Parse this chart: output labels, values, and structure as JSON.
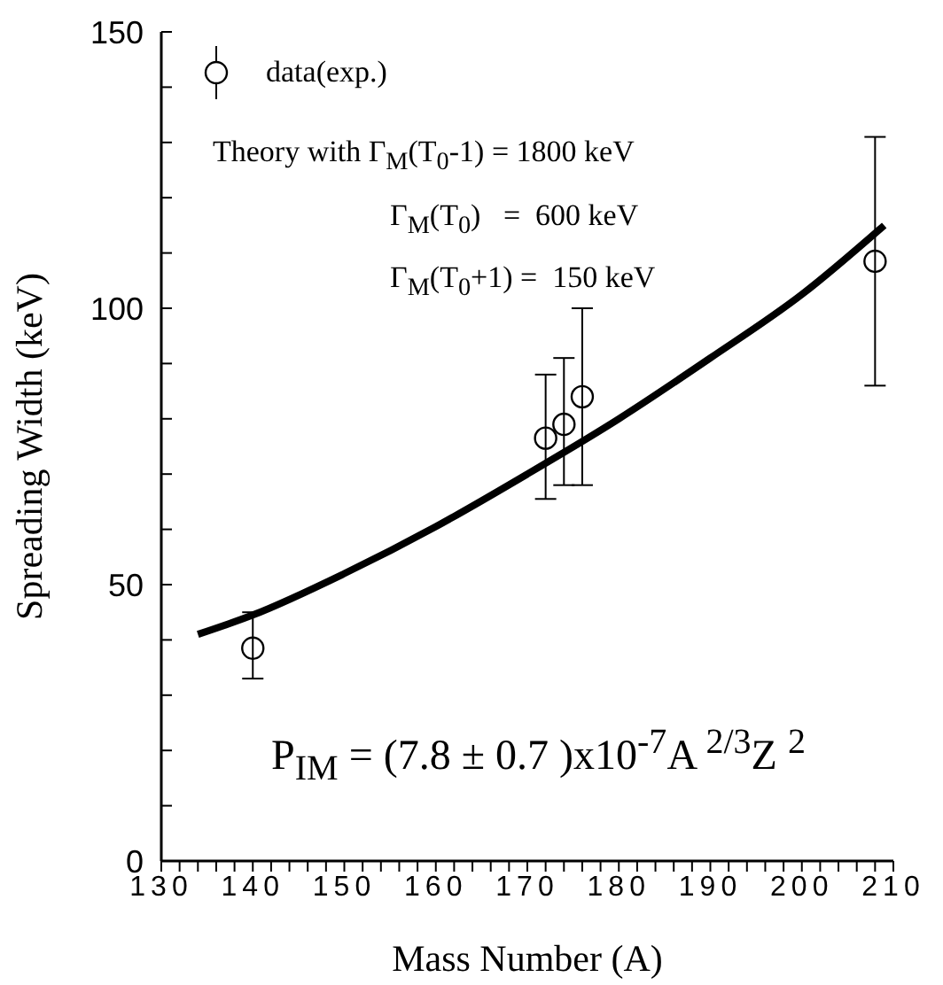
{
  "chart_data": {
    "type": "scatter",
    "xlabel": "Mass Number (A)",
    "ylabel": "Spreading Width (keV)",
    "xlim": [
      130,
      210
    ],
    "ylim": [
      0,
      150
    ],
    "xticks": [
      130,
      {
        "value": 132,
        "label": null
      },
      {
        "value": 134,
        "label": null
      },
      {
        "value": 136,
        "label": null
      },
      {
        "value": 138,
        "label": null
      },
      140,
      {
        "value": 142,
        "label": null
      },
      {
        "value": 144,
        "label": null
      },
      {
        "value": 146,
        "label": null
      },
      {
        "value": 148,
        "label": null
      },
      150,
      {
        "value": 152,
        "label": null
      },
      {
        "value": 154,
        "label": null
      },
      {
        "value": 156,
        "label": null
      },
      {
        "value": 158,
        "label": null
      },
      160,
      {
        "value": 162,
        "label": null
      },
      {
        "value": 164,
        "label": null
      },
      {
        "value": 166,
        "label": null
      },
      {
        "value": 168,
        "label": null
      },
      170,
      {
        "value": 172,
        "label": null
      },
      {
        "value": 174,
        "label": null
      },
      {
        "value": 176,
        "label": null
      },
      {
        "value": 178,
        "label": null
      },
      180,
      {
        "value": 182,
        "label": null
      },
      {
        "value": 184,
        "label": null
      },
      {
        "value": 186,
        "label": null
      },
      {
        "value": 188,
        "label": null
      },
      190,
      {
        "value": 192,
        "label": null
      },
      {
        "value": 194,
        "label": null
      },
      {
        "value": 196,
        "label": null
      },
      {
        "value": 198,
        "label": null
      },
      200,
      {
        "value": 202,
        "label": null
      },
      {
        "value": 204,
        "label": null
      },
      {
        "value": 206,
        "label": null
      },
      {
        "value": 208,
        "label": null
      },
      210
    ],
    "yticks": [
      0,
      {
        "value": 10,
        "label": null
      },
      {
        "value": 20,
        "label": null
      },
      {
        "value": 30,
        "label": null
      },
      {
        "value": 40,
        "label": null
      },
      50,
      {
        "value": 60,
        "label": null
      },
      {
        "value": 70,
        "label": null
      },
      {
        "value": 80,
        "label": null
      },
      {
        "value": 90,
        "label": null
      },
      100,
      {
        "value": 110,
        "label": null
      },
      {
        "value": 120,
        "label": null
      },
      {
        "value": 130,
        "label": null
      },
      {
        "value": 140,
        "label": null
      },
      150
    ],
    "legend": "top left",
    "series": [
      {
        "name": "data(exp.)",
        "color": "#000000",
        "marker": "circle",
        "x": [
          140,
          172,
          174,
          176,
          208
        ],
        "values": [
          38.5,
          76.5,
          79,
          84,
          108.5
        ],
        "errors": [
          [
            33,
            45
          ],
          [
            65.5,
            88
          ],
          [
            68,
            91
          ],
          [
            68,
            100
          ],
          [
            86,
            131
          ]
        ]
      },
      {
        "type": "line",
        "color": "#000000",
        "marker": "none",
        "line_style": "solid",
        "x": [
          134,
          140,
          150,
          160,
          170,
          180,
          190,
          200,
          209
        ],
        "values": [
          41,
          44.5,
          52,
          60.5,
          70,
          80,
          91,
          102.5,
          115
        ]
      }
    ],
    "annotations": [
      "Theory with Γ$_{M}$(T$_{0}$-1) = 1800 keV",
      "Γ$_{M}$(T$_{0}$)   =  600 keV",
      "Γ$_{M}$(T$_{0}$+1) =  150 keV",
      "P$_{IM}$ = (7.8 ± 0.7 )x10$^{-7}$A $^{2/3}$Z $^{2}$"
    ]
  }
}
